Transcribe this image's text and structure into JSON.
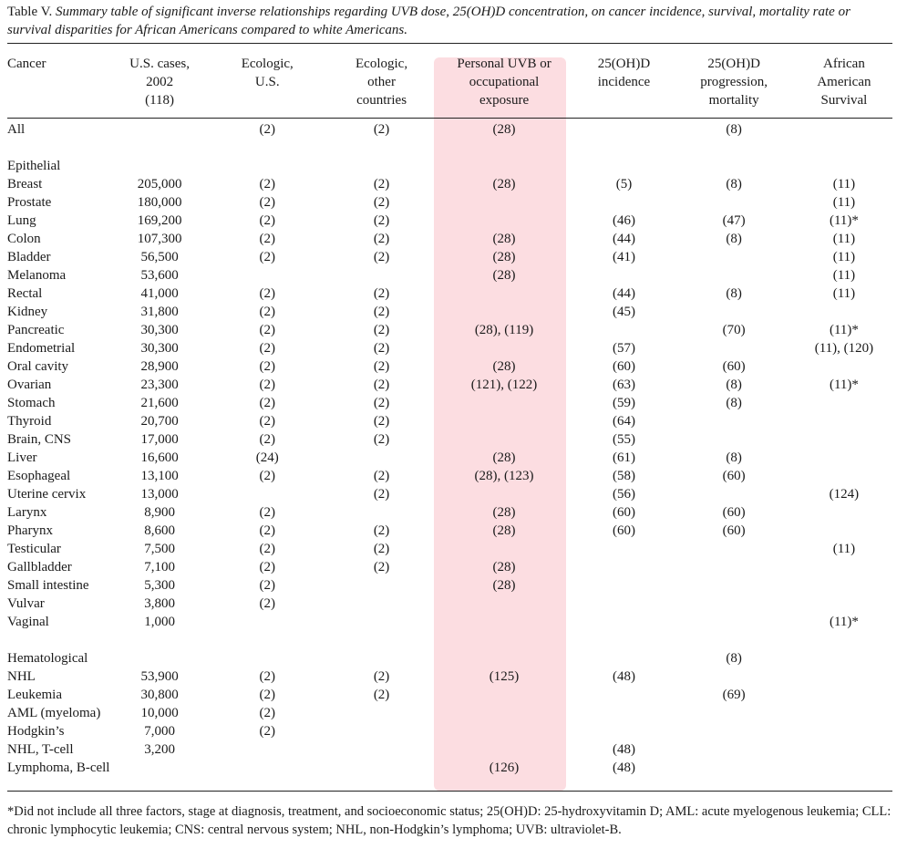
{
  "caption": {
    "label": "Table V.",
    "text": "Summary table of significant inverse relationships regarding UVB dose, 25(OH)D concentration, on cancer incidence, survival, mortality rate or survival disparities for African Americans compared to white Americans."
  },
  "columns": [
    [
      "Cancer"
    ],
    [
      "U.S. cases,",
      "2002",
      "(118)"
    ],
    [
      "Ecologic,",
      "U.S."
    ],
    [
      "Ecologic,",
      "other",
      "countries"
    ],
    [
      "Personal UVB or",
      "occupational",
      "exposure"
    ],
    [
      "25(OH)D",
      "incidence"
    ],
    [
      "25(OH)D",
      "progression,",
      "mortality"
    ],
    [
      "African",
      "American",
      "Survival"
    ]
  ],
  "rows": [
    [
      "All",
      "",
      "(2)",
      "(2)",
      "(28)",
      "",
      "(8)",
      ""
    ],
    [
      "",
      "",
      "",
      "",
      "",
      "",
      "",
      ""
    ],
    [
      "Epithelial",
      "",
      "",
      "",
      "",
      "",
      "",
      ""
    ],
    [
      "Breast",
      "205,000",
      "(2)",
      "(2)",
      "(28)",
      "(5)",
      "(8)",
      "(11)"
    ],
    [
      "Prostate",
      "180,000",
      "(2)",
      "(2)",
      "",
      "",
      "",
      "(11)"
    ],
    [
      "Lung",
      "169,200",
      "(2)",
      "(2)",
      "",
      "(46)",
      "(47)",
      "(11)*"
    ],
    [
      "Colon",
      "107,300",
      "(2)",
      "(2)",
      "(28)",
      "(44)",
      "(8)",
      "(11)"
    ],
    [
      "Bladder",
      "56,500",
      "(2)",
      "(2)",
      "(28)",
      "(41)",
      "",
      "(11)"
    ],
    [
      "Melanoma",
      "53,600",
      "",
      "",
      "(28)",
      "",
      "",
      "(11)"
    ],
    [
      "Rectal",
      "41,000",
      "(2)",
      "(2)",
      "",
      "(44)",
      "(8)",
      "(11)"
    ],
    [
      "Kidney",
      "31,800",
      "(2)",
      "(2)",
      "",
      "(45)",
      "",
      ""
    ],
    [
      "Pancreatic",
      "30,300",
      "(2)",
      "(2)",
      "(28), (119)",
      "",
      "(70)",
      "(11)*"
    ],
    [
      "Endometrial",
      "30,300",
      "(2)",
      "(2)",
      "",
      "(57)",
      "",
      "(11), (120)"
    ],
    [
      "Oral cavity",
      "28,900",
      "(2)",
      "(2)",
      "(28)",
      "(60)",
      "(60)",
      ""
    ],
    [
      "Ovarian",
      "23,300",
      "(2)",
      "(2)",
      "(121), (122)",
      "(63)",
      "(8)",
      "(11)*"
    ],
    [
      "Stomach",
      "21,600",
      "(2)",
      "(2)",
      "",
      "(59)",
      "(8)",
      ""
    ],
    [
      "Thyroid",
      "20,700",
      "(2)",
      "(2)",
      "",
      "(64)",
      "",
      ""
    ],
    [
      "Brain, CNS",
      "17,000",
      "(2)",
      "(2)",
      "",
      "(55)",
      "",
      ""
    ],
    [
      "Liver",
      "16,600",
      "(24)",
      "",
      "(28)",
      "(61)",
      "(8)",
      ""
    ],
    [
      "Esophageal",
      "13,100",
      "(2)",
      "(2)",
      "(28), (123)",
      "(58)",
      "(60)",
      ""
    ],
    [
      "Uterine cervix",
      "13,000",
      "",
      "(2)",
      "",
      "(56)",
      "",
      "(124)"
    ],
    [
      "Larynx",
      "8,900",
      "(2)",
      "",
      "(28)",
      "(60)",
      "(60)",
      ""
    ],
    [
      "Pharynx",
      "8,600",
      "(2)",
      "(2)",
      "(28)",
      "(60)",
      "(60)",
      ""
    ],
    [
      "Testicular",
      "7,500",
      "(2)",
      "(2)",
      "",
      "",
      "",
      "(11)"
    ],
    [
      "Gallbladder",
      "7,100",
      "(2)",
      "(2)",
      "(28)",
      "",
      "",
      ""
    ],
    [
      "Small intestine",
      "5,300",
      "(2)",
      "",
      "(28)",
      "",
      "",
      ""
    ],
    [
      "Vulvar",
      "3,800",
      "(2)",
      "",
      "",
      "",
      "",
      ""
    ],
    [
      "Vaginal",
      "1,000",
      "",
      "",
      "",
      "",
      "",
      "(11)*"
    ],
    [
      "",
      "",
      "",
      "",
      "",
      "",
      "",
      ""
    ],
    [
      "Hematological",
      "",
      "",
      "",
      "",
      "",
      "(8)",
      ""
    ],
    [
      "NHL",
      "53,900",
      "(2)",
      "(2)",
      "(125)",
      "(48)",
      "",
      ""
    ],
    [
      "Leukemia",
      "30,800",
      "(2)",
      "(2)",
      "",
      "",
      "(69)",
      ""
    ],
    [
      "AML (myeloma)",
      "10,000",
      "(2)",
      "",
      "",
      "",
      "",
      ""
    ],
    [
      "Hodgkin’s",
      "7,000",
      "(2)",
      "",
      "",
      "",
      "",
      ""
    ],
    [
      "NHL, T-cell",
      "3,200",
      "",
      "",
      "",
      "(48)",
      "",
      ""
    ],
    [
      "Lymphoma, B-cell",
      "",
      "",
      "",
      "(126)",
      "(48)",
      "",
      ""
    ]
  ],
  "footnote": "*Did not include all three factors, stage at diagnosis, treatment, and socioeconomic status; 25(OH)D: 25-hydroxyvitamin D; AML: acute myelogenous leukemia; CLL: chronic lymphocytic leukemia; CNS: central nervous system; NHL, non-Hodgkin’s lymphoma; UVB: ultraviolet-B."
}
